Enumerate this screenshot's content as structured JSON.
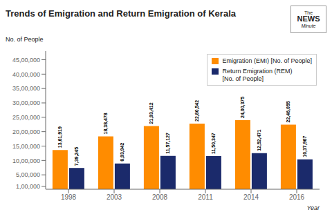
{
  "chart_data": {
    "type": "bar",
    "title": "Trends of Emigration and Return Emigration of Kerala",
    "xlabel": "Year",
    "ylabel": "No. of People",
    "categories": [
      "1998",
      "2003",
      "2008",
      "2011",
      "2014",
      "2016"
    ],
    "series": [
      {
        "name": "Emigration (EMI) [No. of People]",
        "color": "#FF8C00",
        "values": [
          1361919,
          1838478,
          2193412,
          2280542,
          2400375,
          2246055
        ],
        "value_labels": [
          "13,61,919",
          "18,38,478",
          "21,93,412",
          "22,80,542",
          "24,00,375",
          "22,46,055"
        ]
      },
      {
        "name": "Return Emigration (REM)\n[No. of People]",
        "color": "#1B2A6B",
        "values": [
          739245,
          893942,
          1157127,
          1150347,
          1252471,
          1037967
        ],
        "value_labels": [
          "7,39,245",
          "8,93,942",
          "11,57,127",
          "11,50,347",
          "12,52,471",
          "10,37,967"
        ]
      }
    ],
    "ylim": [
      0,
      4800000
    ],
    "yticks": [
      {
        "value": 100000,
        "label": "1,00,000"
      },
      {
        "value": 500000,
        "label": "5,00,000"
      },
      {
        "value": 1000000,
        "label": "10,00,000"
      },
      {
        "value": 1500000,
        "label": "15,00,000"
      },
      {
        "value": 2000000,
        "label": "20,00,000"
      },
      {
        "value": 2500000,
        "label": "25,00,000"
      },
      {
        "value": 3000000,
        "label": "30,00,000"
      },
      {
        "value": 3500000,
        "label": "35,00,000"
      },
      {
        "value": 4000000,
        "label": "40,00,000"
      },
      {
        "value": 4500000,
        "label": "45,00,000"
      }
    ],
    "grid": false,
    "legend": "upper right",
    "data_labels": true,
    "annotations": [
      "The",
      "NEWS",
      "Minute"
    ]
  }
}
